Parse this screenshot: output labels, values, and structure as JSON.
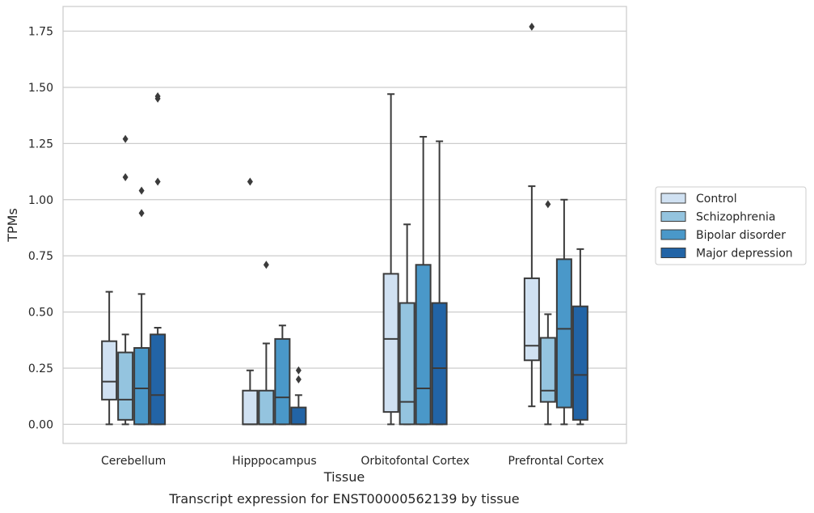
{
  "chart_data": {
    "type": "box",
    "xlabel": "Tissue",
    "ylabel": "TPMs",
    "caption": "Transcript expression for ENST00000562139 by tissue",
    "ylim": [
      -0.085,
      1.86
    ],
    "yticks": [
      "0.00",
      "0.25",
      "0.50",
      "0.75",
      "1.00",
      "1.25",
      "1.50",
      "1.75"
    ],
    "grid": "horizontal",
    "legend_position": "right",
    "categories": [
      "Cerebellum",
      "Hipppocampus",
      "Orbitofontal Cortex",
      "Prefrontal Cortex"
    ],
    "series": [
      {
        "name": "Control",
        "color": "#d0e1f2",
        "boxes": [
          {
            "whisker_low": 0.0,
            "q1": 0.11,
            "median": 0.19,
            "q3": 0.37,
            "whisker_high": 0.59,
            "outliers": []
          },
          {
            "whisker_low": 0.0,
            "q1": 0.0,
            "median": 0.0,
            "q3": 0.15,
            "whisker_high": 0.24,
            "outliers": [
              1.08
            ]
          },
          {
            "whisker_low": 0.0,
            "q1": 0.055,
            "median": 0.38,
            "q3": 0.67,
            "whisker_high": 1.47,
            "outliers": []
          },
          {
            "whisker_low": 0.08,
            "q1": 0.285,
            "median": 0.35,
            "q3": 0.65,
            "whisker_high": 1.06,
            "outliers": [
              1.77
            ]
          }
        ]
      },
      {
        "name": "Schizophrenia",
        "color": "#94c4df",
        "boxes": [
          {
            "whisker_low": 0.0,
            "q1": 0.02,
            "median": 0.11,
            "q3": 0.32,
            "whisker_high": 0.4,
            "outliers": [
              1.1,
              1.27
            ]
          },
          {
            "whisker_low": 0.0,
            "q1": 0.0,
            "median": 0.0,
            "q3": 0.15,
            "whisker_high": 0.36,
            "outliers": [
              0.71
            ]
          },
          {
            "whisker_low": 0.0,
            "q1": 0.0,
            "median": 0.1,
            "q3": 0.54,
            "whisker_high": 0.89,
            "outliers": []
          },
          {
            "whisker_low": 0.0,
            "q1": 0.1,
            "median": 0.15,
            "q3": 0.385,
            "whisker_high": 0.49,
            "outliers": [
              0.98
            ]
          }
        ]
      },
      {
        "name": "Bipolar disorder",
        "color": "#4a98c9",
        "boxes": [
          {
            "whisker_low": 0.0,
            "q1": 0.0,
            "median": 0.16,
            "q3": 0.34,
            "whisker_high": 0.58,
            "outliers": [
              0.94,
              1.04
            ]
          },
          {
            "whisker_low": 0.0,
            "q1": 0.0,
            "median": 0.12,
            "q3": 0.38,
            "whisker_high": 0.44,
            "outliers": []
          },
          {
            "whisker_low": 0.0,
            "q1": 0.0,
            "median": 0.16,
            "q3": 0.71,
            "whisker_high": 1.28,
            "outliers": []
          },
          {
            "whisker_low": 0.0,
            "q1": 0.075,
            "median": 0.425,
            "q3": 0.735,
            "whisker_high": 1.0,
            "outliers": []
          }
        ]
      },
      {
        "name": "Major depression",
        "color": "#2264a6",
        "boxes": [
          {
            "whisker_low": 0.0,
            "q1": 0.0,
            "median": 0.13,
            "q3": 0.4,
            "whisker_high": 0.43,
            "outliers": [
              1.08,
              1.45,
              1.46
            ]
          },
          {
            "whisker_low": 0.0,
            "q1": 0.0,
            "median": 0.0,
            "q3": 0.075,
            "whisker_high": 0.13,
            "outliers": [
              0.2,
              0.24
            ]
          },
          {
            "whisker_low": 0.0,
            "q1": 0.0,
            "median": 0.25,
            "q3": 0.54,
            "whisker_high": 1.26,
            "outliers": []
          },
          {
            "whisker_low": 0.0,
            "q1": 0.02,
            "median": 0.22,
            "q3": 0.525,
            "whisker_high": 0.78,
            "outliers": []
          }
        ]
      }
    ]
  }
}
